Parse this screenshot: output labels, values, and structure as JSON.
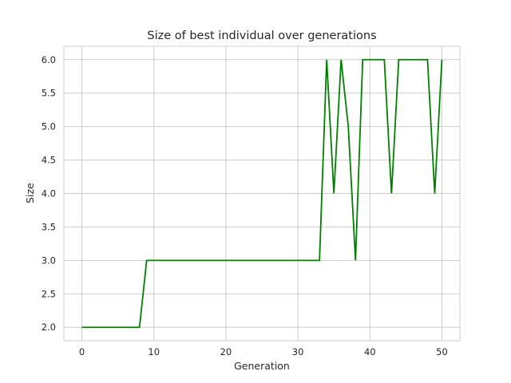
{
  "chart_data": {
    "type": "line",
    "title": "Size of best individual over generations",
    "xlabel": "Generation",
    "ylabel": "Size",
    "xlim": [
      -2.5,
      52.5
    ],
    "ylim": [
      1.8,
      6.2
    ],
    "xticks": [
      0,
      10,
      20,
      30,
      40,
      50
    ],
    "yticks": [
      2.0,
      2.5,
      3.0,
      3.5,
      4.0,
      4.5,
      5.0,
      5.5,
      6.0
    ],
    "xtick_labels": [
      "0",
      "10",
      "20",
      "30",
      "40",
      "50"
    ],
    "ytick_labels": [
      "2.0",
      "2.5",
      "3.0",
      "3.5",
      "4.0",
      "4.5",
      "5.0",
      "5.5",
      "6.0"
    ],
    "grid": true,
    "legend": "none",
    "series": [
      {
        "color": "#008000",
        "x": [
          0,
          1,
          2,
          3,
          4,
          5,
          6,
          7,
          8,
          9,
          10,
          11,
          12,
          13,
          14,
          15,
          16,
          17,
          18,
          19,
          20,
          21,
          22,
          23,
          24,
          25,
          26,
          27,
          28,
          29,
          30,
          31,
          32,
          33,
          34,
          35,
          36,
          37,
          38,
          39,
          40,
          41,
          42,
          43,
          44,
          45,
          46,
          47,
          48,
          49,
          50
        ],
        "y": [
          2,
          2,
          2,
          2,
          2,
          2,
          2,
          2,
          2,
          3,
          3,
          3,
          3,
          3,
          3,
          3,
          3,
          3,
          3,
          3,
          3,
          3,
          3,
          3,
          3,
          3,
          3,
          3,
          3,
          3,
          3,
          3,
          3,
          3,
          6,
          4,
          6,
          5,
          3,
          6,
          6,
          6,
          6,
          4,
          6,
          6,
          6,
          6,
          6,
          4,
          6
        ]
      }
    ]
  }
}
